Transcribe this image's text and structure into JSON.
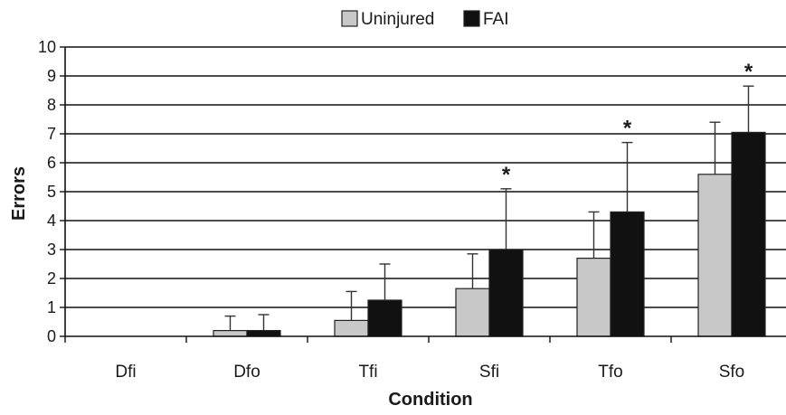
{
  "chart_data": {
    "type": "bar",
    "xlabel": "Condition",
    "ylabel": "Errors",
    "ylim": [
      0,
      10
    ],
    "yticks": [
      0,
      1,
      2,
      3,
      4,
      5,
      6,
      7,
      8,
      9,
      10
    ],
    "grid": true,
    "legend_position": "top-center",
    "categories": [
      "Dfi",
      "Dfo",
      "Tfi",
      "Sfi",
      "Tfo",
      "Sfo"
    ],
    "series": [
      {
        "name": "Uninjured",
        "color": "#c8c8c8",
        "values": [
          0,
          0.2,
          0.55,
          1.65,
          2.7,
          5.6
        ],
        "error": [
          0,
          0.5,
          1.0,
          1.2,
          1.6,
          1.8
        ]
      },
      {
        "name": "FAI",
        "color": "#111111",
        "values": [
          0,
          0.2,
          1.25,
          3.0,
          4.3,
          7.05
        ],
        "error": [
          0,
          0.55,
          1.25,
          2.1,
          2.4,
          1.6
        ]
      }
    ],
    "significance_marker": "*",
    "significant_categories": [
      "Sfi",
      "Tfo",
      "Sfo"
    ]
  }
}
